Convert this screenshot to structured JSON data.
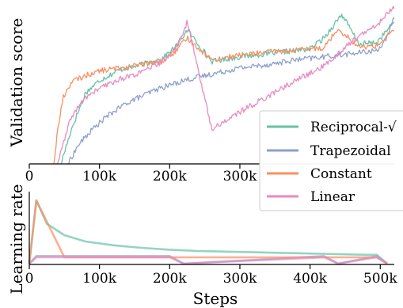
{
  "chart_data": [
    {
      "type": "line",
      "ylabel": "Validation score",
      "xlabel": "",
      "xlim": [
        0,
        520000
      ],
      "ylim": [
        0,
        1
      ],
      "y_ticks_shown": false,
      "x_ticks": [
        0,
        100000,
        200000,
        300000
      ],
      "x_tick_labels": [
        "0",
        "100k",
        "200k",
        "300k"
      ],
      "legend_position": "lower-right",
      "legend": [
        "Reciprocal-√",
        "Trapezoidal",
        "Constant",
        "Linear"
      ],
      "series": [
        {
          "name": "Reciprocal-√",
          "color": "#66c2a5",
          "x": [
            45000,
            60000,
            80000,
            100000,
            130000,
            160000,
            190000,
            210000,
            225000,
            260000,
            300000,
            340000,
            380000,
            400000,
            420000,
            445000,
            470000,
            495000,
            520000
          ],
          "y": [
            0.0,
            0.22,
            0.45,
            0.53,
            0.6,
            0.63,
            0.67,
            0.75,
            0.85,
            0.65,
            0.68,
            0.7,
            0.72,
            0.73,
            0.8,
            0.95,
            0.76,
            0.77,
            0.9
          ]
        },
        {
          "name": "Trapezoidal",
          "color": "#8da0cb",
          "x": [
            55000,
            70000,
            90000,
            110000,
            140000,
            180000,
            220000,
            260000,
            300000,
            340000,
            380000,
            420000,
            460000,
            495000,
            510000,
            520000
          ],
          "y": [
            0.0,
            0.12,
            0.22,
            0.3,
            0.39,
            0.47,
            0.53,
            0.57,
            0.61,
            0.63,
            0.66,
            0.68,
            0.7,
            0.72,
            0.8,
            0.93
          ]
        },
        {
          "name": "Constant",
          "color": "#fc8d62",
          "x": [
            35000,
            40000,
            48000,
            60000,
            80000,
            100000,
            130000,
            160000,
            190000,
            210000,
            225000,
            260000,
            300000,
            340000,
            380000,
            420000,
            440000,
            470000,
            495000,
            520000
          ],
          "y": [
            0.0,
            0.2,
            0.42,
            0.52,
            0.56,
            0.59,
            0.61,
            0.63,
            0.65,
            0.72,
            0.8,
            0.66,
            0.69,
            0.71,
            0.72,
            0.74,
            0.86,
            0.74,
            0.75,
            0.85
          ]
        },
        {
          "name": "Linear",
          "color": "#e78ac3",
          "x": [
            40000,
            60000,
            80000,
            100000,
            130000,
            160000,
            190000,
            210000,
            225000,
            260000,
            300000,
            340000,
            380000,
            420000,
            460000,
            495000,
            520000
          ],
          "y": [
            0.0,
            0.3,
            0.42,
            0.48,
            0.54,
            0.58,
            0.65,
            0.74,
            0.9,
            0.22,
            0.33,
            0.43,
            0.53,
            0.62,
            0.78,
            0.88,
            1.0
          ]
        }
      ]
    },
    {
      "type": "line",
      "ylabel": "Learning rate",
      "xlabel": "Steps",
      "xlim": [
        0,
        520000
      ],
      "ylim": [
        0,
        1
      ],
      "y_ticks_shown": false,
      "x_ticks": [
        0,
        100000,
        200000,
        300000,
        400000,
        500000
      ],
      "x_tick_labels": [
        "0",
        "100k",
        "200k",
        "300k",
        "400k",
        "500k"
      ],
      "series": [
        {
          "name": "Reciprocal-√",
          "color": "#66c2a5",
          "x": [
            0,
            10000,
            25000,
            50000,
            80000,
            120000,
            160000,
            200000,
            240000,
            280000,
            320000,
            360000,
            400000,
            440000,
            480000,
            495000,
            510000
          ],
          "y": [
            0.0,
            1.0,
            0.63,
            0.45,
            0.35,
            0.29,
            0.25,
            0.22,
            0.2,
            0.19,
            0.18,
            0.17,
            0.16,
            0.15,
            0.14,
            0.14,
            0.0
          ]
        },
        {
          "name": "Trapezoidal",
          "color": "#8da0cb",
          "x": [
            0,
            10000,
            200000,
            220000,
            420000,
            440000,
            495000,
            510000
          ],
          "y": [
            0.0,
            0.12,
            0.12,
            0.0,
            0.12,
            0.0,
            0.12,
            0.0
          ]
        },
        {
          "name": "Constant",
          "color": "#fc8d62",
          "x": [
            0,
            10000,
            50000,
            495000,
            510000
          ],
          "y": [
            0.0,
            1.0,
            0.1,
            0.1,
            0.0
          ]
        },
        {
          "name": "Linear",
          "color": "#e78ac3",
          "x": [
            0,
            10000,
            200000,
            220000,
            420000,
            440000,
            495000,
            510000
          ],
          "y": [
            0.0,
            0.1,
            0.1,
            0.0,
            0.1,
            0.0,
            0.1,
            0.0
          ]
        }
      ]
    }
  ]
}
